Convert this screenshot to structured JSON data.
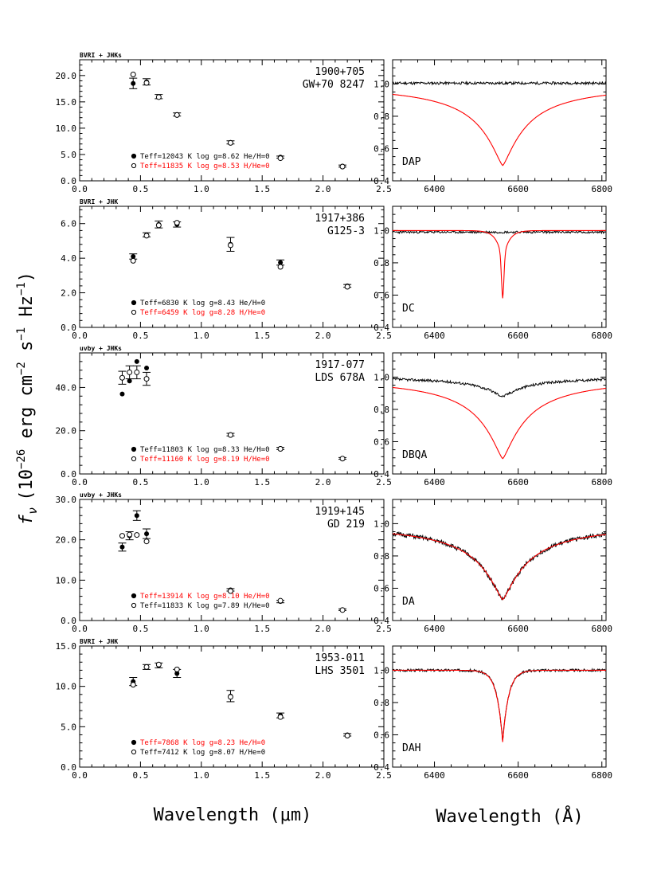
{
  "ylabel": "f_ν (10^-26 erg cm^-2 s^-1 Hz^-1)",
  "ylabel_parts": {
    "f": "f",
    "nu": "ν",
    "a": "(10",
    "e1": "−26",
    "b": " erg cm",
    "e2": "−2",
    "c": " s",
    "e3": "−1",
    "d": " Hz",
    "e4": "−1",
    "e": ")"
  },
  "xlabel_left": "Wavelength (μm)",
  "xlabel_right": "Wavelength (Å)",
  "colors": {
    "black": "#000000",
    "red": "#ff0000"
  },
  "chart_data": [
    {
      "type": "scatter",
      "panel": "photometry",
      "bands": "BVRI + JHKs",
      "name1": "1900+705",
      "name2": "GW+70 8247",
      "xlim": [
        0.0,
        2.5
      ],
      "ylim": [
        0.0,
        23.0
      ],
      "xticks": [
        "0.0",
        "0.5",
        "1.0",
        "1.5",
        "2.0",
        "2.5"
      ],
      "yticks": [
        "0.0",
        "5.0",
        "10.0",
        "15.0",
        "20.0"
      ],
      "ytick_values": [
        0,
        5,
        10,
        15,
        20
      ],
      "observed": {
        "x": [
          0.44,
          0.55,
          0.65,
          0.8,
          1.24,
          1.65,
          2.16
        ],
        "y": [
          18.5,
          18.8,
          16.0,
          12.6,
          7.3,
          4.5,
          2.8
        ],
        "err": [
          1.0,
          0.6,
          0.4,
          0.3,
          0.3,
          0.2,
          0.2
        ]
      },
      "model": {
        "x": [
          0.44,
          0.55,
          0.65,
          0.8,
          1.24,
          1.65,
          2.16
        ],
        "y": [
          20.2,
          18.6,
          15.9,
          12.5,
          7.2,
          4.3,
          2.7
        ]
      },
      "legend": [
        {
          "marker": "filled",
          "text": "Teff=12043 K  log g=8.62  He/H=0",
          "color": "#000000"
        },
        {
          "marker": "open",
          "text": "Teff=11835 K  log g=8.53  H/He=0",
          "color": "#ff0000"
        }
      ]
    },
    {
      "type": "line",
      "panel": "spectrum",
      "spectral_type": "DAP",
      "xlim": [
        6300,
        6810
      ],
      "ylim": [
        0.4,
        1.15
      ],
      "xticks": [
        "6400",
        "6600",
        "6800"
      ],
      "xtick_values": [
        6400,
        6600,
        6800
      ],
      "yticks": [
        "0.4",
        "0.6",
        "0.8",
        "1.0"
      ],
      "ytick_values": [
        0.4,
        0.6,
        0.8,
        1.0
      ],
      "observed_profile": {
        "depth": 0.0,
        "width": 10,
        "noise": 0.008,
        "baseline": 1.005,
        "tilt": 0.0,
        "seed": 11
      },
      "model_profile": {
        "depth": 0.505,
        "width": 60,
        "sharp_depth": 0.0,
        "sharp_width": 3
      }
    },
    {
      "type": "scatter",
      "panel": "photometry",
      "bands": "BVRI + JHK",
      "name1": "1917+386",
      "name2": "G125-3",
      "xlim": [
        0.0,
        2.5
      ],
      "ylim": [
        0.0,
        7.0
      ],
      "xticks": [
        "0.0",
        "0.5",
        "1.0",
        "1.5",
        "2.0",
        "2.5"
      ],
      "yticks": [
        "0.0",
        "2.0",
        "4.0",
        "6.0"
      ],
      "ytick_values": [
        0,
        2,
        4,
        6
      ],
      "observed": {
        "x": [
          0.44,
          0.55,
          0.65,
          0.8,
          1.24,
          1.65,
          2.2
        ],
        "y": [
          4.1,
          5.35,
          5.95,
          5.95,
          4.8,
          3.75,
          2.4
        ],
        "err": [
          0.15,
          0.12,
          0.2,
          0.15,
          0.4,
          0.15,
          0.08
        ]
      },
      "model": {
        "x": [
          0.44,
          0.55,
          0.65,
          0.8,
          1.24,
          1.65,
          2.2
        ],
        "y": [
          3.85,
          5.3,
          5.9,
          6.05,
          4.75,
          3.5,
          2.35
        ]
      },
      "legend": [
        {
          "marker": "filled",
          "text": "Teff=6830 K  log g=8.43  He/H=0",
          "color": "#000000"
        },
        {
          "marker": "open",
          "text": "Teff=6459 K  log g=8.28  H/He=0",
          "color": "#ff0000"
        }
      ]
    },
    {
      "type": "line",
      "panel": "spectrum",
      "spectral_type": "DC",
      "xlim": [
        6300,
        6810
      ],
      "ylim": [
        0.4,
        1.15
      ],
      "xticks": [
        "6400",
        "6600",
        "6800"
      ],
      "xtick_values": [
        6400,
        6600,
        6800
      ],
      "yticks": [
        "0.4",
        "0.6",
        "0.8",
        "1.0"
      ],
      "ytick_values": [
        0.4,
        0.6,
        0.8,
        1.0
      ],
      "observed_profile": {
        "depth": 0.0,
        "width": 10,
        "noise": 0.007,
        "baseline": 0.99,
        "tilt": 0.0,
        "seed": 23
      },
      "model_profile": {
        "depth": 0.19,
        "width": 14,
        "sharp_depth": 0.23,
        "sharp_width": 3
      }
    },
    {
      "type": "scatter",
      "panel": "photometry",
      "bands": "uvby + JHKs",
      "name1": "1917-077",
      "name2": "LDS 678A",
      "xlim": [
        0.0,
        2.5
      ],
      "ylim": [
        0.0,
        56.0
      ],
      "xticks": [
        "0.0",
        "0.5",
        "1.0",
        "1.5",
        "2.0",
        "2.5"
      ],
      "yticks": [
        "0.0",
        "20.0",
        "40.0"
      ],
      "ytick_values": [
        0,
        20,
        40
      ],
      "observed": {
        "x": [
          0.35,
          0.41,
          0.47,
          0.55,
          1.24,
          1.65,
          2.16
        ],
        "y": [
          37.0,
          43.0,
          52.0,
          49.0,
          18.2,
          11.8,
          7.2
        ],
        "err": [
          0,
          0,
          0,
          0,
          0.6,
          0.5,
          0.4
        ]
      },
      "model": {
        "x": [
          0.35,
          0.41,
          0.47,
          0.55,
          1.24,
          1.65,
          2.16
        ],
        "y": [
          44.5,
          47.0,
          47.0,
          44.0,
          18.0,
          11.6,
          7.1
        ]
      },
      "model_err": [
        3.0,
        3.0,
        3.0,
        3.0,
        0,
        0,
        0
      ],
      "legend": [
        {
          "marker": "filled",
          "text": "Teff=11803 K  log g=8.33  He/H=0",
          "color": "#000000"
        },
        {
          "marker": "open",
          "text": "Teff=11160 K  log g=8.19  H/He=0",
          "color": "#ff0000"
        }
      ]
    },
    {
      "type": "line",
      "panel": "spectrum",
      "spectral_type": "DBQA",
      "xlim": [
        6300,
        6810
      ],
      "ylim": [
        0.4,
        1.15
      ],
      "xticks": [
        "6400",
        "6600",
        "6800"
      ],
      "xtick_values": [
        6400,
        6600,
        6800
      ],
      "yticks": [
        "0.4",
        "0.6",
        "0.8",
        "1.0"
      ],
      "ytick_values": [
        0.4,
        0.6,
        0.8,
        1.0
      ],
      "observed_profile": {
        "depth": 0.12,
        "width": 55,
        "noise": 0.008,
        "baseline": 1.0,
        "tilt": 0.0,
        "seed": 37
      },
      "model_profile": {
        "depth": 0.505,
        "width": 60,
        "sharp_depth": 0.0,
        "sharp_width": 3
      }
    },
    {
      "type": "scatter",
      "panel": "photometry",
      "bands": "uvby + JHKs",
      "name1": "1919+145",
      "name2": "GD 219",
      "xlim": [
        0.0,
        2.5
      ],
      "ylim": [
        0.0,
        30.0
      ],
      "xticks": [
        "0.0",
        "0.5",
        "1.0",
        "1.5",
        "2.0",
        "2.5"
      ],
      "yticks": [
        "0.0",
        "10.0",
        "20.0",
        "30.0"
      ],
      "ytick_values": [
        0,
        10,
        20,
        30
      ],
      "observed": {
        "x": [
          0.35,
          0.41,
          0.47,
          0.55,
          1.24,
          1.65,
          2.16
        ],
        "y": [
          18.2,
          21.0,
          26.0,
          21.5,
          7.6,
          4.7,
          2.7
        ],
        "err": [
          1.0,
          1.0,
          1.2,
          1.2,
          0.3,
          0.3,
          0.2
        ]
      },
      "model": {
        "x": [
          0.35,
          0.41,
          0.47,
          0.55,
          1.24,
          1.65,
          2.16
        ],
        "y": [
          21.0,
          21.3,
          21.2,
          19.6,
          7.3,
          4.9,
          2.6
        ]
      },
      "legend": [
        {
          "marker": "filled",
          "text": "Teff=13914 K  log g=8.10  He/H=0",
          "color": "#ff0000"
        },
        {
          "marker": "open",
          "text": "Teff=11833 K  log g=7.89  H/He=0",
          "color": "#000000"
        }
      ]
    },
    {
      "type": "line",
      "panel": "spectrum",
      "spectral_type": "DA",
      "xlim": [
        6300,
        6810
      ],
      "ylim": [
        0.4,
        1.15
      ],
      "xticks": [
        "6400",
        "6600",
        "6800"
      ],
      "xtick_values": [
        6400,
        6600,
        6800
      ],
      "yticks": [
        "0.4",
        "0.6",
        "0.8",
        "1.0"
      ],
      "ytick_values": [
        0.4,
        0.6,
        0.8,
        1.0
      ],
      "observed_profile": {
        "depth": 0.47,
        "width": 62,
        "noise": 0.014,
        "baseline": 1.0,
        "tilt": 0.0,
        "seed": 51
      },
      "model_profile": {
        "depth": 0.47,
        "width": 62,
        "sharp_depth": 0.0,
        "sharp_width": 3
      }
    },
    {
      "type": "scatter",
      "panel": "photometry",
      "bands": "BVRI + JHK",
      "name1": "1953-011",
      "name2": "LHS 3501",
      "xlim": [
        0.0,
        2.5
      ],
      "ylim": [
        0.0,
        15.0
      ],
      "xticks": [
        "0.0",
        "0.5",
        "1.0",
        "1.5",
        "2.0",
        "2.5"
      ],
      "yticks": [
        "0.0",
        "5.0",
        "10.0",
        "15.0"
      ],
      "ytick_values": [
        0,
        5,
        10,
        15
      ],
      "observed": {
        "x": [
          0.44,
          0.55,
          0.65,
          0.8,
          1.24,
          1.65,
          2.2
        ],
        "y": [
          10.6,
          12.4,
          12.6,
          11.6,
          8.8,
          6.4,
          4.0
        ],
        "err": [
          0.5,
          0.3,
          0.3,
          0.5,
          0.7,
          0.3,
          0.15
        ]
      },
      "model": {
        "x": [
          0.44,
          0.55,
          0.65,
          0.8,
          1.24,
          1.65,
          2.2
        ],
        "y": [
          10.2,
          12.4,
          12.7,
          12.1,
          8.7,
          6.2,
          3.9
        ]
      },
      "legend": [
        {
          "marker": "filled",
          "text": "Teff=7868 K  log g=8.23  He/H=0",
          "color": "#ff0000"
        },
        {
          "marker": "open",
          "text": "Teff=7412 K  log g=8.07  H/He=0",
          "color": "#000000"
        }
      ]
    },
    {
      "type": "line",
      "panel": "spectrum",
      "spectral_type": "DAH",
      "xlim": [
        6300,
        6810
      ],
      "ylim": [
        0.4,
        1.15
      ],
      "xticks": [
        "6400",
        "6600",
        "6800"
      ],
      "xtick_values": [
        6400,
        6600,
        6800
      ],
      "yticks": [
        "0.4",
        "0.6",
        "0.8",
        "1.0"
      ],
      "ytick_values": [
        0.4,
        0.6,
        0.8,
        1.0
      ],
      "observed_profile": {
        "depth": 0.44,
        "width": 14,
        "noise": 0.008,
        "baseline": 1.0,
        "tilt": 0.0,
        "seed": 67
      },
      "model_profile": {
        "depth": 0.445,
        "width": 14,
        "sharp_depth": 0.0,
        "sharp_width": 3
      }
    }
  ]
}
